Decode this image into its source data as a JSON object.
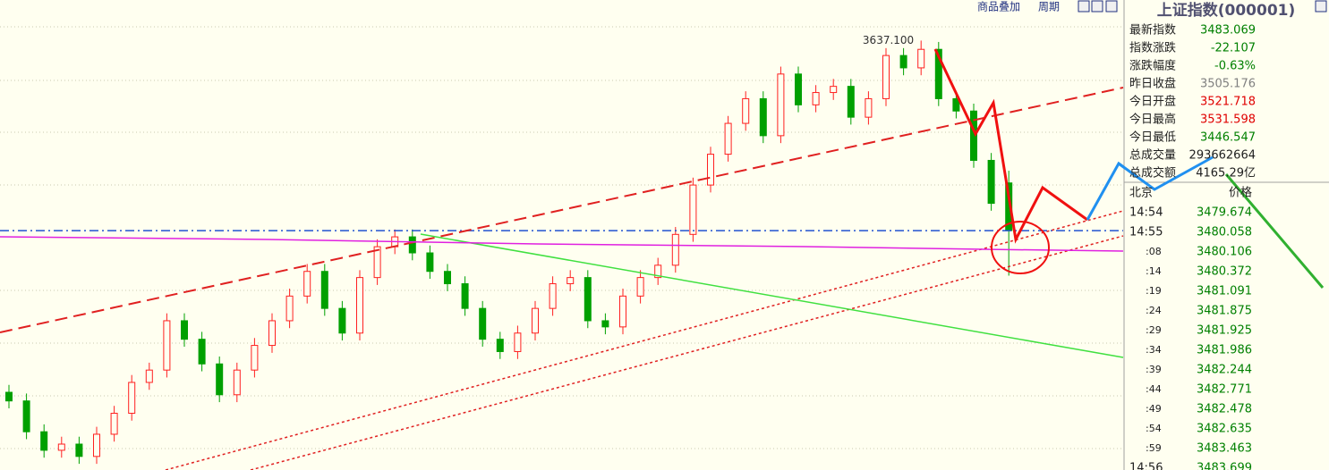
{
  "toolbar": {
    "buttons": [
      "商品叠加",
      "周期"
    ]
  },
  "chart_data": {
    "type": "candlestick",
    "annotation": "3637.100",
    "ylim": [
      3289,
      3670
    ],
    "up_color": "#ff2020",
    "down_color": "#00a000",
    "series": {
      "open": [
        3352,
        3345,
        3320,
        3305,
        3310,
        3300,
        3318,
        3335,
        3360,
        3370,
        3410,
        3395,
        3375,
        3350,
        3370,
        3390,
        3410,
        3430,
        3450,
        3420,
        3400,
        3445,
        3470,
        3478,
        3465,
        3450,
        3440,
        3420,
        3395,
        3385,
        3400,
        3420,
        3440,
        3445,
        3410,
        3405,
        3430,
        3445,
        3455,
        3480,
        3520,
        3545,
        3570,
        3590,
        3560,
        3610,
        3585,
        3595,
        3600,
        3575,
        3590,
        3625,
        3615,
        3630,
        3590,
        3580,
        3540,
        3521.718
      ],
      "high": [
        3358,
        3351,
        3326,
        3316,
        3316,
        3324,
        3341,
        3366,
        3376,
        3416,
        3416,
        3401,
        3381,
        3376,
        3396,
        3416,
        3436,
        3456,
        3456,
        3426,
        3451,
        3476,
        3484,
        3484,
        3471,
        3456,
        3446,
        3426,
        3401,
        3406,
        3426,
        3446,
        3451,
        3451,
        3416,
        3436,
        3451,
        3461,
        3486,
        3526,
        3551,
        3576,
        3596,
        3596,
        3616,
        3616,
        3601,
        3606,
        3606,
        3596,
        3631,
        3631,
        3637.1,
        3636,
        3596,
        3586,
        3546,
        3531.598
      ],
      "low": [
        3339,
        3314,
        3299,
        3299,
        3294,
        3294,
        3312,
        3329,
        3354,
        3364,
        3389,
        3369,
        3344,
        3344,
        3364,
        3384,
        3404,
        3424,
        3414,
        3394,
        3394,
        3439,
        3464,
        3459,
        3444,
        3434,
        3414,
        3389,
        3379,
        3379,
        3394,
        3414,
        3434,
        3404,
        3399,
        3399,
        3424,
        3439,
        3449,
        3474,
        3514,
        3539,
        3564,
        3554,
        3554,
        3579,
        3579,
        3589,
        3569,
        3569,
        3584,
        3609,
        3609,
        3584,
        3574,
        3534,
        3499.176,
        3446.547
      ],
      "close": [
        3345,
        3320,
        3305,
        3310,
        3300,
        3318,
        3335,
        3360,
        3370,
        3410,
        3395,
        3375,
        3350,
        3370,
        3390,
        3410,
        3430,
        3450,
        3420,
        3400,
        3445,
        3470,
        3478,
        3465,
        3450,
        3440,
        3420,
        3395,
        3385,
        3400,
        3420,
        3440,
        3445,
        3410,
        3405,
        3430,
        3445,
        3455,
        3480,
        3520,
        3545,
        3570,
        3590,
        3560,
        3610,
        3585,
        3595,
        3600,
        3575,
        3590,
        3625,
        3615,
        3630,
        3590,
        3580,
        3540,
        3505.176,
        3483.069
      ]
    }
  },
  "quote": {
    "title": "上证指数(000001)",
    "rows": [
      [
        "最新指数",
        "3483.069"
      ],
      [
        "指数涨跌",
        "-22.107"
      ],
      [
        "涨跌幅度",
        "-0.63%"
      ],
      [
        "昨日收盘",
        "3505.176"
      ],
      [
        "今日开盘",
        "3521.718"
      ],
      [
        "今日最高",
        "3531.598"
      ],
      [
        "今日最低",
        "3446.547"
      ],
      [
        "总成交量",
        "293662664"
      ],
      [
        "总成交额",
        "4165.29亿"
      ]
    ]
  },
  "ticks": {
    "header": [
      "北京",
      "价格"
    ],
    "rows": [
      [
        "14:54",
        "3479.674"
      ],
      [
        "14:55",
        "3480.058"
      ],
      [
        ":08",
        "3480.106"
      ],
      [
        ":14",
        "3480.372"
      ],
      [
        ":19",
        "3481.091"
      ],
      [
        ":24",
        "3481.875"
      ],
      [
        ":29",
        "3481.925"
      ],
      [
        ":34",
        "3481.986"
      ],
      [
        ":39",
        "3482.244"
      ],
      [
        ":44",
        "3482.771"
      ],
      [
        ":49",
        "3482.478"
      ],
      [
        ":54",
        "3482.635"
      ],
      [
        ":59",
        "3483.463"
      ],
      [
        "14:56",
        "3483.699"
      ]
    ]
  }
}
